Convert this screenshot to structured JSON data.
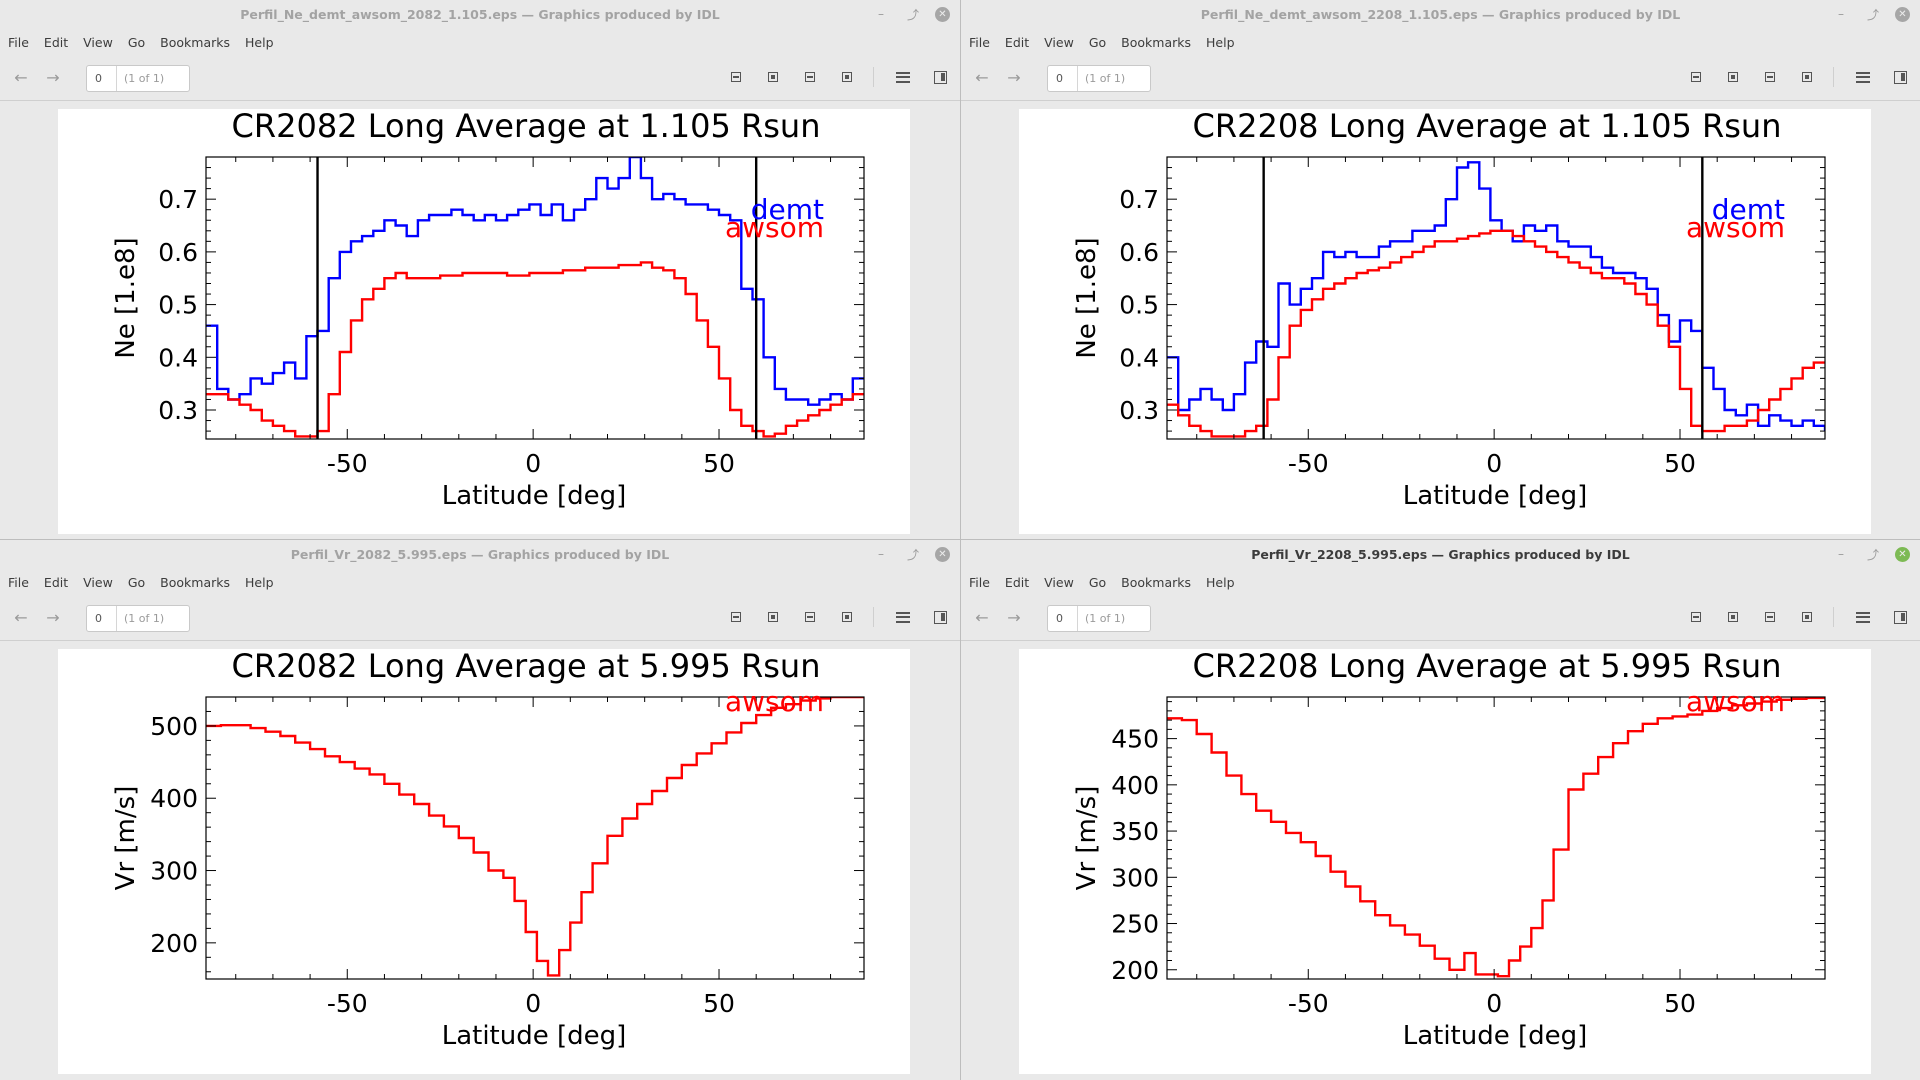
{
  "windows": [
    {
      "id": "w1",
      "title": "Perfil_Ne_demt_awsom_2082_1.105.eps — Graphics produced by IDL",
      "active": false,
      "close_color": "#a6a6a6",
      "menu": [
        "File",
        "Edit",
        "View",
        "Go",
        "Bookmarks",
        "Help"
      ],
      "page_value": "0",
      "page_count": "(1 of 1)"
    },
    {
      "id": "w2",
      "title": "Perfil_Ne_demt_awsom_2208_1.105.eps — Graphics produced by IDL",
      "active": false,
      "close_color": "#a6a6a6",
      "menu": [
        "File",
        "Edit",
        "View",
        "Go",
        "Bookmarks",
        "Help"
      ],
      "page_value": "0",
      "page_count": "(1 of 1)"
    },
    {
      "id": "w3",
      "title": "Perfil_Vr_2082_5.995.eps — Graphics produced by IDL",
      "active": false,
      "close_color": "#a6a6a6",
      "menu": [
        "File",
        "Edit",
        "View",
        "Go",
        "Bookmarks",
        "Help"
      ],
      "page_value": "0",
      "page_count": "(1 of 1)"
    },
    {
      "id": "w4",
      "title": "Perfil_Vr_2208_5.995.eps — Graphics produced by IDL",
      "active": true,
      "close_color": "#7dba54",
      "menu": [
        "File",
        "Edit",
        "View",
        "Go",
        "Bookmarks",
        "Help"
      ],
      "page_value": "0",
      "page_count": "(1 of 1)"
    }
  ],
  "chart_data": [
    {
      "type": "line",
      "title": "CR2082 Long Average at 1.105 Rsun",
      "xlabel": "Latitude [deg]",
      "ylabel": "Ne [1.e8]",
      "xlim": [
        -88,
        89
      ],
      "ylim": [
        0.245,
        0.78
      ],
      "xticks": [
        -50,
        0,
        50
      ],
      "yticks": [
        0.3,
        0.4,
        0.5,
        0.6,
        0.7
      ],
      "tick_labels_y": [
        "0.3",
        "0.4",
        "0.5",
        "0.6",
        "0.7"
      ],
      "tick_labels_x": [
        "-50",
        "0",
        "50"
      ],
      "vlines": [
        -58,
        60
      ],
      "legend_placement": "top-right",
      "step": true,
      "series": [
        {
          "name": "demt",
          "color": "#0000ff",
          "x": [
            -88,
            -85,
            -82,
            -79,
            -76,
            -73,
            -70,
            -67,
            -64,
            -61,
            -58,
            -55,
            -52,
            -49,
            -46,
            -43,
            -40,
            -37,
            -34,
            -31,
            -28,
            -25,
            -22,
            -19,
            -16,
            -13,
            -10,
            -7,
            -4,
            -1,
            2,
            5,
            8,
            11,
            14,
            17,
            20,
            23,
            26,
            29,
            32,
            35,
            38,
            41,
            44,
            47,
            50,
            53,
            56,
            59,
            62,
            65,
            68,
            71,
            74,
            77,
            80,
            83,
            86,
            89
          ],
          "y": [
            0.46,
            0.34,
            0.32,
            0.33,
            0.36,
            0.35,
            0.37,
            0.39,
            0.36,
            0.44,
            0.45,
            0.55,
            0.6,
            0.62,
            0.63,
            0.64,
            0.66,
            0.65,
            0.63,
            0.66,
            0.67,
            0.67,
            0.68,
            0.67,
            0.66,
            0.67,
            0.66,
            0.67,
            0.68,
            0.69,
            0.67,
            0.69,
            0.66,
            0.68,
            0.7,
            0.74,
            0.72,
            0.74,
            0.78,
            0.74,
            0.7,
            0.71,
            0.7,
            0.69,
            0.69,
            0.68,
            0.67,
            0.66,
            0.53,
            0.51,
            0.4,
            0.34,
            0.32,
            0.32,
            0.31,
            0.32,
            0.33,
            0.32,
            0.36,
            0.36
          ]
        },
        {
          "name": "awsom",
          "color": "#ff0000",
          "x": [
            -88,
            -85,
            -82,
            -79,
            -76,
            -73,
            -70,
            -67,
            -64,
            -61,
            -58,
            -55,
            -52,
            -49,
            -46,
            -43,
            -40,
            -37,
            -34,
            -31,
            -28,
            -25,
            -22,
            -19,
            -16,
            -13,
            -10,
            -7,
            -4,
            -1,
            2,
            5,
            8,
            11,
            14,
            17,
            20,
            23,
            26,
            29,
            32,
            35,
            38,
            41,
            44,
            47,
            50,
            53,
            56,
            59,
            62,
            65,
            68,
            71,
            74,
            77,
            80,
            83,
            86,
            89
          ],
          "y": [
            0.33,
            0.33,
            0.32,
            0.31,
            0.3,
            0.28,
            0.27,
            0.26,
            0.25,
            0.25,
            0.26,
            0.33,
            0.41,
            0.47,
            0.51,
            0.53,
            0.55,
            0.56,
            0.55,
            0.55,
            0.55,
            0.555,
            0.555,
            0.56,
            0.56,
            0.56,
            0.56,
            0.555,
            0.555,
            0.56,
            0.56,
            0.56,
            0.565,
            0.565,
            0.57,
            0.57,
            0.57,
            0.575,
            0.575,
            0.58,
            0.57,
            0.565,
            0.55,
            0.52,
            0.47,
            0.42,
            0.36,
            0.3,
            0.27,
            0.26,
            0.25,
            0.255,
            0.27,
            0.28,
            0.29,
            0.3,
            0.31,
            0.32,
            0.33,
            0.33
          ]
        }
      ]
    },
    {
      "type": "line",
      "title": "CR2208 Long Average at 1.105 Rsun",
      "xlabel": "Latitude [deg]",
      "ylabel": "Ne [1.e8]",
      "xlim": [
        -88,
        89
      ],
      "ylim": [
        0.245,
        0.78
      ],
      "xticks": [
        -50,
        0,
        50
      ],
      "yticks": [
        0.3,
        0.4,
        0.5,
        0.6,
        0.7
      ],
      "tick_labels_y": [
        "0.3",
        "0.4",
        "0.5",
        "0.6",
        "0.7"
      ],
      "tick_labels_x": [
        "-50",
        "0",
        "50"
      ],
      "vlines": [
        -62,
        56
      ],
      "legend_placement": "top-right",
      "step": true,
      "series": [
        {
          "name": "demt",
          "color": "#0000ff",
          "x": [
            -88,
            -85,
            -82,
            -79,
            -76,
            -73,
            -70,
            -67,
            -64,
            -61,
            -58,
            -55,
            -52,
            -49,
            -46,
            -43,
            -40,
            -37,
            -34,
            -31,
            -28,
            -25,
            -22,
            -19,
            -16,
            -13,
            -10,
            -7,
            -4,
            -1,
            2,
            5,
            8,
            11,
            14,
            17,
            20,
            23,
            26,
            29,
            32,
            35,
            38,
            41,
            44,
            47,
            50,
            53,
            56,
            59,
            62,
            65,
            68,
            71,
            74,
            77,
            80,
            83,
            86,
            89
          ],
          "y": [
            0.4,
            0.3,
            0.32,
            0.34,
            0.32,
            0.3,
            0.33,
            0.39,
            0.43,
            0.42,
            0.54,
            0.5,
            0.53,
            0.55,
            0.6,
            0.59,
            0.6,
            0.59,
            0.59,
            0.61,
            0.62,
            0.62,
            0.64,
            0.64,
            0.65,
            0.7,
            0.76,
            0.77,
            0.72,
            0.66,
            0.64,
            0.62,
            0.65,
            0.64,
            0.65,
            0.62,
            0.61,
            0.61,
            0.59,
            0.57,
            0.56,
            0.56,
            0.55,
            0.53,
            0.48,
            0.43,
            0.47,
            0.45,
            0.38,
            0.34,
            0.3,
            0.29,
            0.31,
            0.27,
            0.29,
            0.28,
            0.27,
            0.28,
            0.27,
            0.26
          ]
        },
        {
          "name": "awsom",
          "color": "#ff0000",
          "x": [
            -88,
            -85,
            -82,
            -79,
            -76,
            -73,
            -70,
            -67,
            -64,
            -61,
            -58,
            -55,
            -52,
            -49,
            -46,
            -43,
            -40,
            -37,
            -34,
            -31,
            -28,
            -25,
            -22,
            -19,
            -16,
            -13,
            -10,
            -7,
            -4,
            -1,
            2,
            5,
            8,
            11,
            14,
            17,
            20,
            23,
            26,
            29,
            32,
            35,
            38,
            41,
            44,
            47,
            50,
            53,
            56,
            59,
            62,
            65,
            68,
            71,
            74,
            77,
            80,
            83,
            86,
            89
          ],
          "y": [
            0.31,
            0.29,
            0.27,
            0.26,
            0.25,
            0.25,
            0.25,
            0.26,
            0.27,
            0.32,
            0.4,
            0.46,
            0.49,
            0.51,
            0.53,
            0.54,
            0.55,
            0.56,
            0.565,
            0.57,
            0.58,
            0.59,
            0.6,
            0.61,
            0.62,
            0.62,
            0.625,
            0.63,
            0.635,
            0.64,
            0.64,
            0.63,
            0.62,
            0.61,
            0.6,
            0.59,
            0.58,
            0.57,
            0.56,
            0.55,
            0.55,
            0.54,
            0.52,
            0.5,
            0.46,
            0.42,
            0.34,
            0.27,
            0.26,
            0.26,
            0.27,
            0.27,
            0.28,
            0.3,
            0.32,
            0.34,
            0.36,
            0.38,
            0.39,
            0.39
          ]
        }
      ]
    },
    {
      "type": "line",
      "title": "CR2082 Long Average at 5.995 Rsun",
      "xlabel": "Latitude [deg]",
      "ylabel": "Vr [m/s]",
      "xlim": [
        -88,
        89
      ],
      "ylim": [
        150,
        540
      ],
      "xticks": [
        -50,
        0,
        50
      ],
      "yticks": [
        200,
        300,
        400,
        500
      ],
      "tick_labels_y": [
        "200",
        "300",
        "400",
        "500"
      ],
      "tick_labels_x": [
        "-50",
        "0",
        "50"
      ],
      "vlines": [],
      "legend_placement": "top-right",
      "step": true,
      "series": [
        {
          "name": "awsom",
          "color": "#ff0000",
          "x": [
            -88,
            -84,
            -80,
            -76,
            -72,
            -68,
            -64,
            -60,
            -56,
            -52,
            -48,
            -44,
            -40,
            -36,
            -32,
            -28,
            -24,
            -20,
            -16,
            -12,
            -8,
            -5,
            -2,
            1,
            4,
            7,
            10,
            13,
            16,
            20,
            24,
            28,
            32,
            36,
            40,
            44,
            48,
            52,
            56,
            60,
            64,
            68,
            72,
            76,
            80,
            84,
            89
          ],
          "y": [
            500,
            501,
            501,
            497,
            492,
            486,
            477,
            468,
            458,
            450,
            441,
            433,
            420,
            405,
            392,
            376,
            361,
            345,
            325,
            300,
            290,
            258,
            215,
            175,
            155,
            190,
            228,
            270,
            310,
            348,
            372,
            392,
            410,
            428,
            446,
            462,
            476,
            491,
            504,
            515,
            525,
            530,
            535,
            538,
            540,
            540,
            540
          ]
        }
      ]
    },
    {
      "type": "line",
      "title": "CR2208 Long Average at 5.995 Rsun",
      "xlabel": "Latitude [deg]",
      "ylabel": "Vr [m/s]",
      "xlim": [
        -88,
        89
      ],
      "ylim": [
        190,
        495
      ],
      "xticks": [
        -50,
        0,
        50
      ],
      "yticks": [
        200,
        250,
        300,
        350,
        400,
        450
      ],
      "tick_labels_y": [
        "200",
        "250",
        "300",
        "350",
        "400",
        "450"
      ],
      "tick_labels_x": [
        "-50",
        "0",
        "50"
      ],
      "vlines": [],
      "legend_placement": "top-right",
      "step": true,
      "series": [
        {
          "name": "awsom",
          "color": "#ff0000",
          "x": [
            -88,
            -84,
            -80,
            -76,
            -72,
            -68,
            -64,
            -60,
            -56,
            -52,
            -48,
            -44,
            -40,
            -36,
            -32,
            -28,
            -24,
            -20,
            -16,
            -12,
            -8,
            -5,
            -2,
            1,
            4,
            7,
            10,
            13,
            16,
            20,
            24,
            28,
            32,
            36,
            40,
            44,
            48,
            52,
            56,
            60,
            64,
            68,
            72,
            76,
            80,
            84,
            89
          ],
          "y": [
            472,
            470,
            455,
            435,
            410,
            390,
            372,
            360,
            348,
            338,
            323,
            306,
            290,
            274,
            259,
            248,
            238,
            226,
            212,
            200,
            218,
            195,
            195,
            193,
            210,
            225,
            245,
            275,
            330,
            395,
            412,
            430,
            445,
            458,
            466,
            472,
            474,
            476,
            480,
            483,
            486,
            488,
            490,
            492,
            493,
            494,
            494
          ]
        }
      ]
    }
  ]
}
